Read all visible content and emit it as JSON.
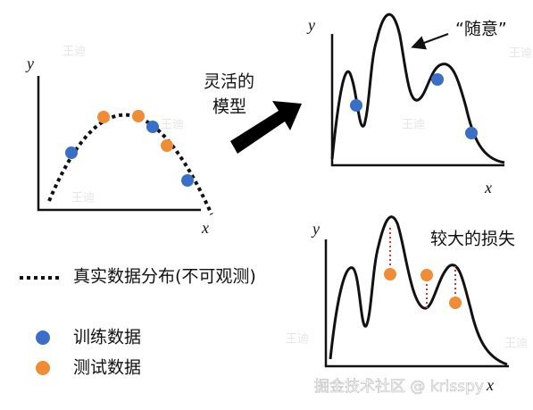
{
  "left_plot": {
    "y_label": "y",
    "x_label": "x"
  },
  "arrow_label": {
    "line1": "灵活的",
    "line2": "模型"
  },
  "top_right_plot": {
    "y_label": "y",
    "x_label": "x",
    "annotation": "“随意”"
  },
  "bottom_right_plot": {
    "y_label": "y",
    "x_label": "x",
    "annotation": "较大的损失"
  },
  "legend": {
    "true_distribution": "真实数据分布(不可观测)",
    "training_data": "训练数据",
    "test_data": "测试数据"
  },
  "watermarks": {
    "author": "王迪",
    "site": "掘金技术社区 @ krisspy"
  }
}
